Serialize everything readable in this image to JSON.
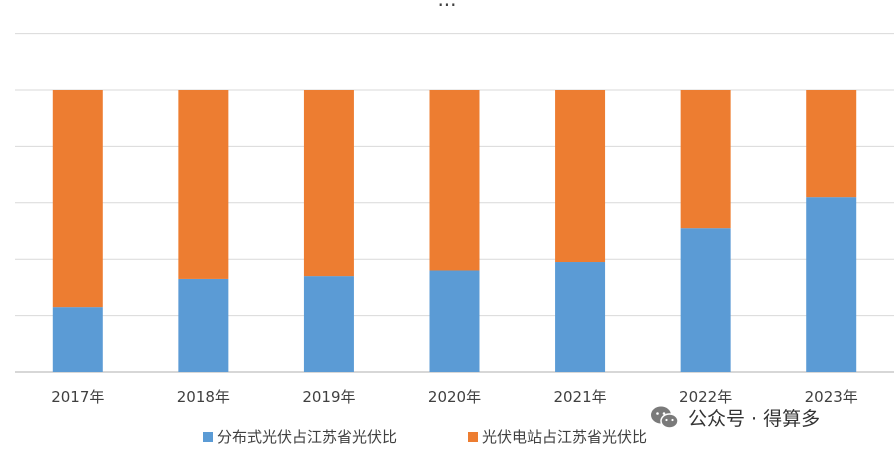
{
  "chart_data": {
    "type": "bar",
    "stacked": true,
    "percent_stacked": true,
    "categories": [
      "2017年",
      "2018年",
      "2019年",
      "2020年",
      "2021年",
      "2022年",
      "2023年"
    ],
    "series": [
      {
        "name": "分布式光伏占江苏省光伏比",
        "color": "#5b9bd5",
        "values": [
          23,
          33,
          34,
          36,
          39,
          51,
          62
        ]
      },
      {
        "name": "光伏电站占江苏省光伏比",
        "color": "#ed7d31",
        "values": [
          77,
          67,
          66,
          64,
          61,
          49,
          38
        ]
      }
    ],
    "ylim": [
      0,
      100
    ],
    "grid": true,
    "legend_position": "bottom"
  },
  "title_cut": "...",
  "watermark": {
    "text": "公众号 · 得算多",
    "icon": "wechat-icon"
  }
}
